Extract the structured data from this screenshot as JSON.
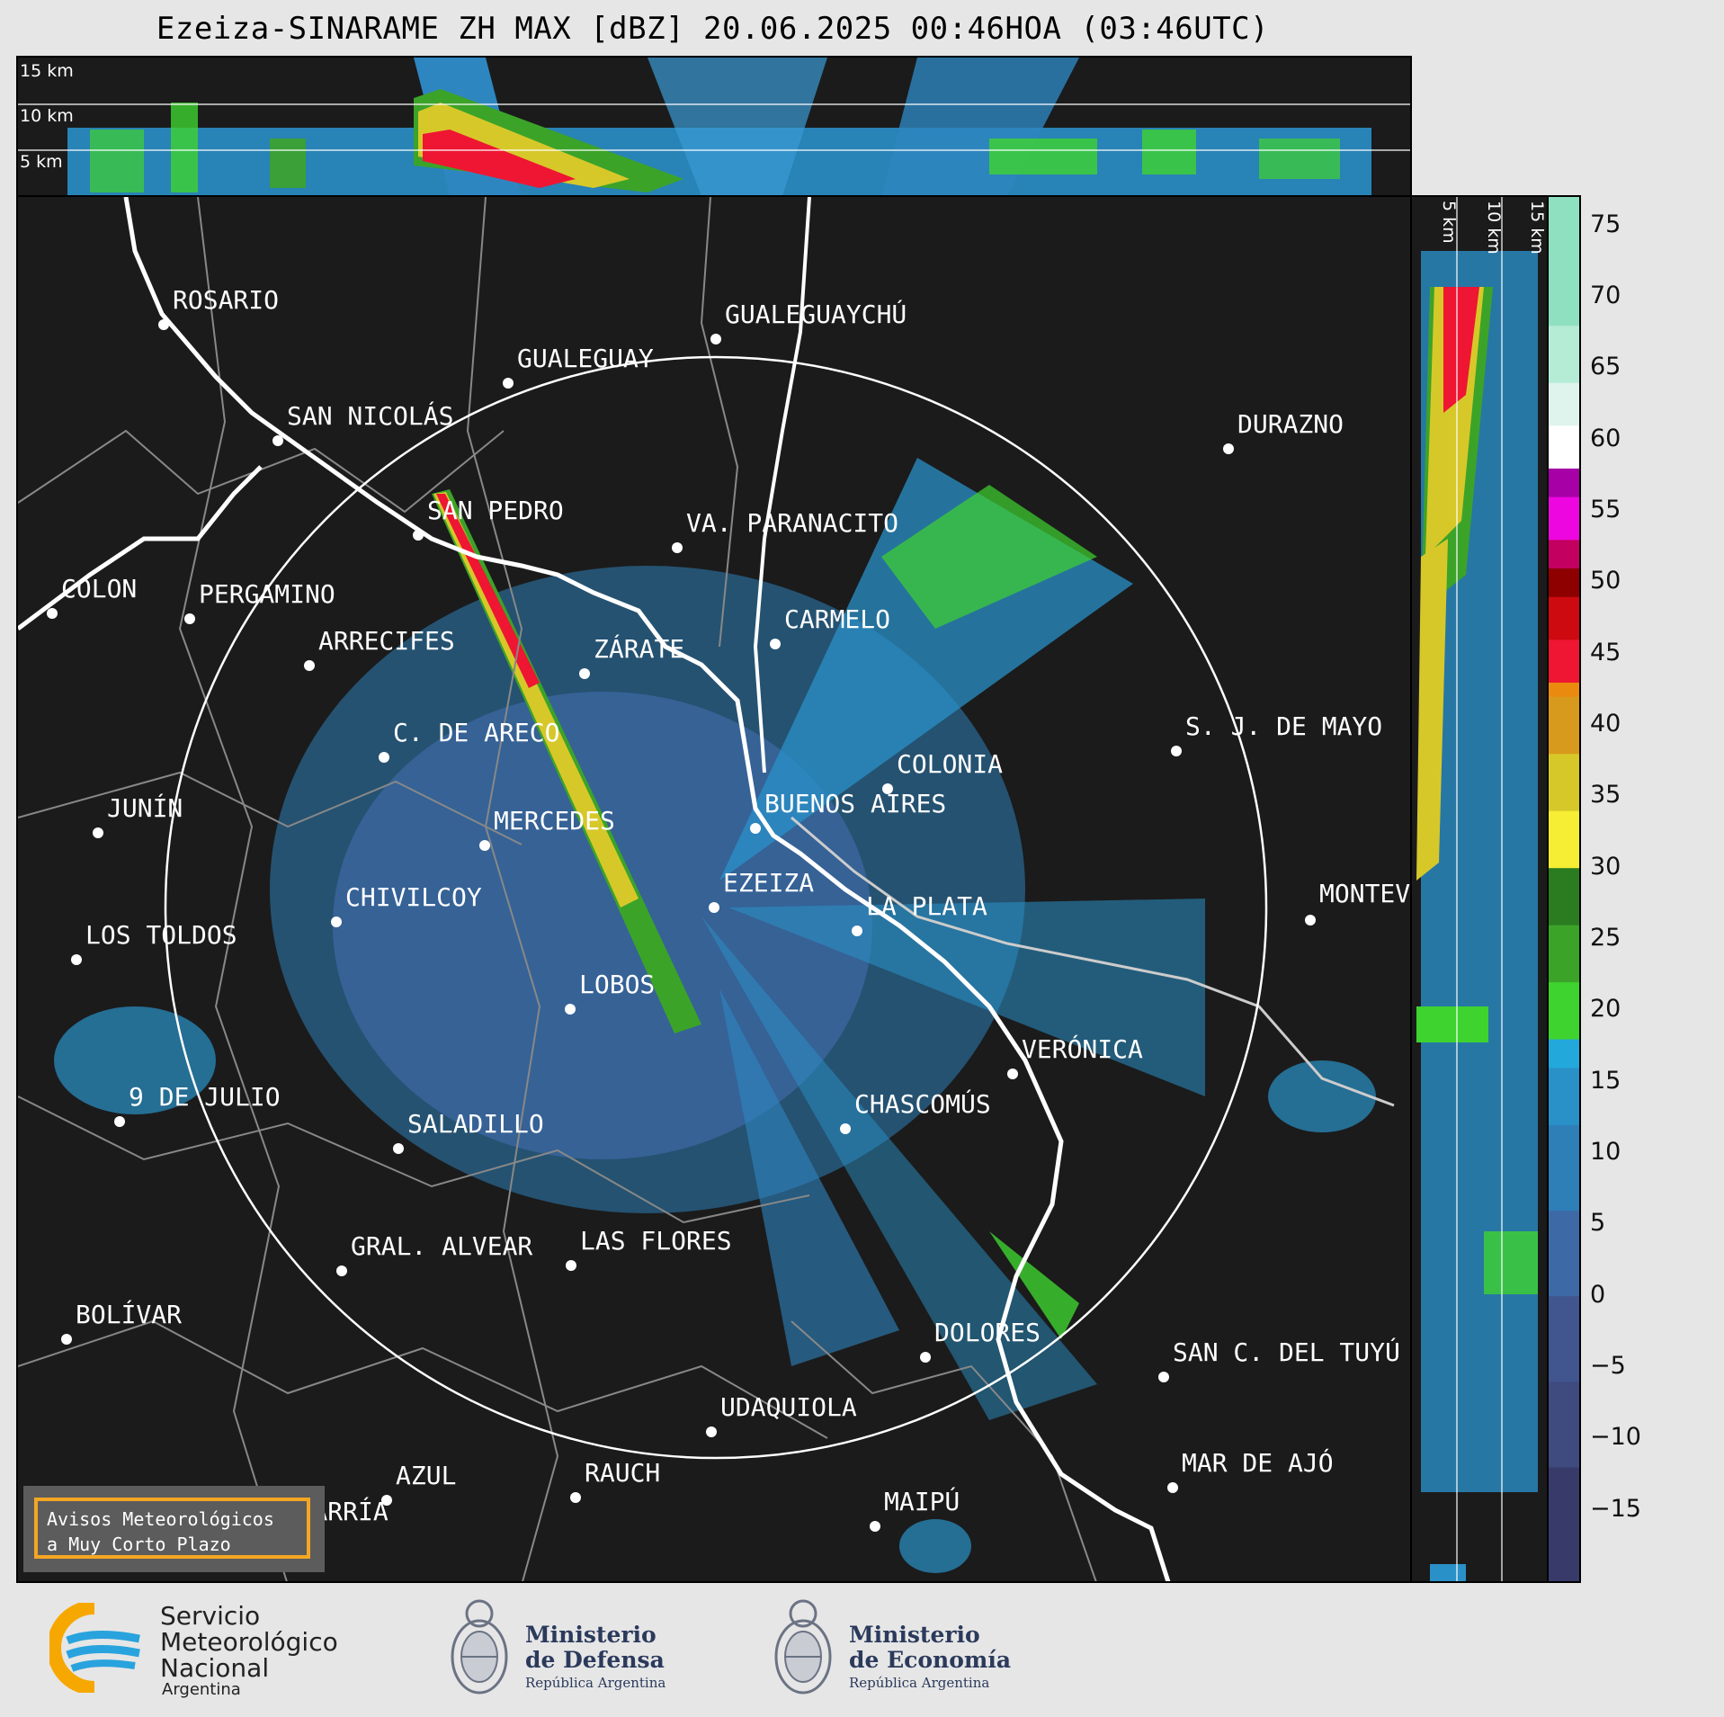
{
  "title": "Ezeiza-SINARAME ZH MAX [dBZ] 20.06.2025 00:46HOA (03:46UTC)",
  "top_panel": {
    "labels": [
      "15 km",
      "10 km",
      "5 km"
    ]
  },
  "side_panel": {
    "labels": [
      "5 km",
      "10 km",
      "15 km"
    ]
  },
  "colorbar": {
    "ticks": [
      "75",
      "70",
      "65",
      "60",
      "55",
      "50",
      "45",
      "40",
      "35",
      "30",
      "25",
      "20",
      "15",
      "10",
      "5",
      "0",
      "−5",
      "−10",
      "−15"
    ],
    "range": [
      -20,
      77
    ],
    "stops": [
      {
        "from": -20,
        "color": "#383a6a"
      },
      {
        "from": -12,
        "color": "#3f4a7e"
      },
      {
        "from": -6,
        "color": "#41568f"
      },
      {
        "from": 0,
        "color": "#3d6aa6"
      },
      {
        "from": 6,
        "color": "#2e7fb8"
      },
      {
        "from": 12,
        "color": "#2a91c8"
      },
      {
        "from": 16,
        "color": "#23a8dc"
      },
      {
        "from": 18,
        "color": "#3ed32f"
      },
      {
        "from": 22,
        "color": "#3ca329"
      },
      {
        "from": 26,
        "color": "#2b7c20"
      },
      {
        "from": 30,
        "color": "#f5ee34"
      },
      {
        "from": 34,
        "color": "#d7c82a"
      },
      {
        "from": 38,
        "color": "#d89a1c"
      },
      {
        "from": 42,
        "color": "#ea8b10"
      },
      {
        "from": 43,
        "color": "#ee1632"
      },
      {
        "from": 46,
        "color": "#cc0a10"
      },
      {
        "from": 49,
        "color": "#8e0000"
      },
      {
        "from": 51,
        "color": "#c30060"
      },
      {
        "from": 53,
        "color": "#ee06e0"
      },
      {
        "from": 56,
        "color": "#a600a6"
      },
      {
        "from": 58,
        "color": "#ffffff"
      },
      {
        "from": 61,
        "color": "#dff4ec"
      },
      {
        "from": 64,
        "color": "#b5ecd6"
      },
      {
        "from": 68,
        "color": "#8fe0c0"
      }
    ]
  },
  "map": {
    "radar_site": "EZEIZA",
    "cities": [
      {
        "name": "ROSARIO"
      },
      {
        "name": "GUALEGUAYCHÚ"
      },
      {
        "name": "GUALEGUAY"
      },
      {
        "name": "SAN NICOLÁS"
      },
      {
        "name": "DURAZNO"
      },
      {
        "name": "SAN PEDRO"
      },
      {
        "name": "VA. PARANACITO"
      },
      {
        "name": "COLON"
      },
      {
        "name": "PERGAMINO"
      },
      {
        "name": "CARMELO"
      },
      {
        "name": "ARRECIFES"
      },
      {
        "name": "ZÁRATE"
      },
      {
        "name": "S. J. DE MAYO"
      },
      {
        "name": "C. DE ARECO"
      },
      {
        "name": "COLONIA"
      },
      {
        "name": "JUNÍN"
      },
      {
        "name": "BUENOS AIRES"
      },
      {
        "name": "MERCEDES"
      },
      {
        "name": "MONTEVIDEO"
      },
      {
        "name": "EZEIZA"
      },
      {
        "name": "CHIVILCOY"
      },
      {
        "name": "LA PLATA"
      },
      {
        "name": "LOS TOLDOS"
      },
      {
        "name": "LOBOS"
      },
      {
        "name": "VERÓNICA"
      },
      {
        "name": "9 DE JULIO"
      },
      {
        "name": "CHASCOMÚS"
      },
      {
        "name": "SALADILLO"
      },
      {
        "name": "GRAL. ALVEAR"
      },
      {
        "name": "LAS FLORES"
      },
      {
        "name": "BOLÍVAR"
      },
      {
        "name": "DOLORES"
      },
      {
        "name": "SAN C. DEL TUYÚ"
      },
      {
        "name": "UDAQUIOLA"
      },
      {
        "name": "MAR DE AJÓ"
      },
      {
        "name": "AZUL"
      },
      {
        "name": "RAUCH"
      },
      {
        "name": "OLAVARRÍA"
      },
      {
        "name": "MAIPÚ"
      }
    ]
  },
  "warning_box": {
    "line1": "Avisos Meteorológicos",
    "line2": "a Muy Corto Plazo"
  },
  "logos": {
    "smn": {
      "line1": "Servicio",
      "line2": "Meteorológico",
      "line3": "Nacional",
      "country": "Argentina"
    },
    "defensa": {
      "line1": "Ministerio",
      "line2": "de Defensa",
      "sub": "República Argentina"
    },
    "economia": {
      "line1": "Ministerio",
      "line2": "de Economía",
      "sub": "República Argentina"
    }
  }
}
